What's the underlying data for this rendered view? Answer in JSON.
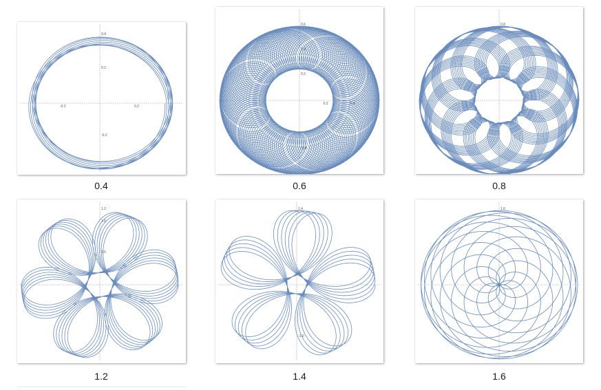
{
  "chart_data": [
    {
      "type": "line",
      "caption": "0.4",
      "param": 0.4,
      "axis_max": 0.4,
      "xlim": [
        -0.4,
        0.4
      ],
      "ylim": [
        -0.4,
        0.4
      ],
      "y_ticks": [
        "0.4",
        "0.2",
        "-0.2"
      ],
      "x_ticks": [
        "-0.2",
        "0.2"
      ]
    },
    {
      "type": "line",
      "caption": "0.6",
      "param": 0.6,
      "axis_max": 0.6,
      "xlim": [
        -0.6,
        0.6
      ],
      "ylim": [
        -0.6,
        0.6
      ],
      "y_ticks": [
        "0.6",
        "0.4",
        "0.2",
        "-0.4"
      ],
      "x_ticks": [
        "0.2",
        "0.4"
      ]
    },
    {
      "type": "line",
      "caption": "0.8",
      "param": 0.8,
      "axis_max": 0.8,
      "xlim": [
        -0.8,
        0.8
      ],
      "ylim": [
        -0.8,
        0.8
      ],
      "y_ticks": [
        "0.8"
      ],
      "x_ticks": []
    },
    {
      "type": "line",
      "caption": "1.2",
      "param": 1.2,
      "axis_max": 1.2,
      "xlim": [
        -1.2,
        1.2
      ],
      "ylim": [
        -1.2,
        1.2
      ],
      "y_ticks": [
        "1.2",
        "1.0",
        "0.5"
      ],
      "x_ticks": []
    },
    {
      "type": "line",
      "caption": "1.4",
      "param": 1.4,
      "axis_max": 1.4,
      "xlim": [
        -1.4,
        1.4
      ],
      "ylim": [
        -1.4,
        1.4
      ],
      "y_ticks": [
        "1.4",
        "-1.0"
      ],
      "x_ticks": [
        "-1.5"
      ]
    },
    {
      "type": "line",
      "caption": "1.6",
      "param": 1.6,
      "axis_max": 1.6,
      "xlim": [
        -1.6,
        1.6
      ],
      "ylim": [
        -1.6,
        1.6
      ],
      "y_ticks": [
        "1.6"
      ],
      "x_ticks": []
    }
  ],
  "colors": {
    "curve": "#5a7fb5",
    "axis": "#8c8c8c"
  }
}
